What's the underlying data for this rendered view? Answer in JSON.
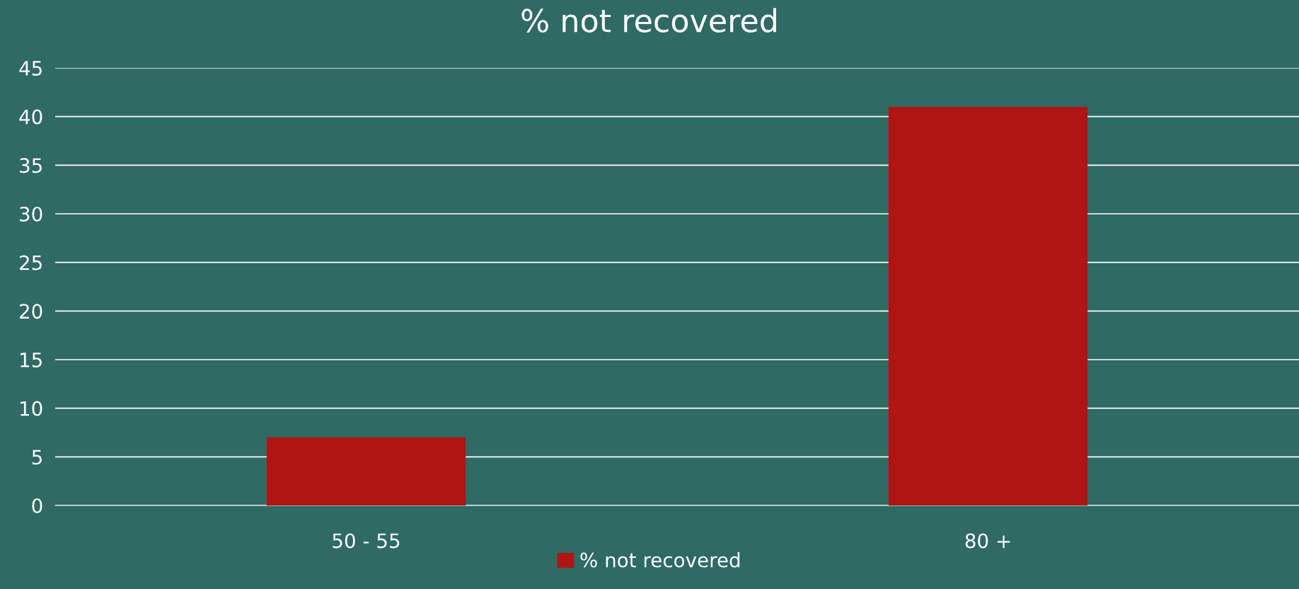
{
  "chart_data": {
    "type": "bar",
    "title": "% not recovered",
    "categories": [
      "50 - 55",
      "80 +"
    ],
    "series": [
      {
        "name": "% not recovered",
        "color": "#b01513",
        "values": [
          7,
          41
        ]
      }
    ],
    "ylim": [
      0,
      45
    ],
    "yticks": [
      0,
      5,
      10,
      15,
      20,
      25,
      30,
      35,
      40,
      45
    ],
    "grid": "y",
    "legend": "bottom"
  }
}
